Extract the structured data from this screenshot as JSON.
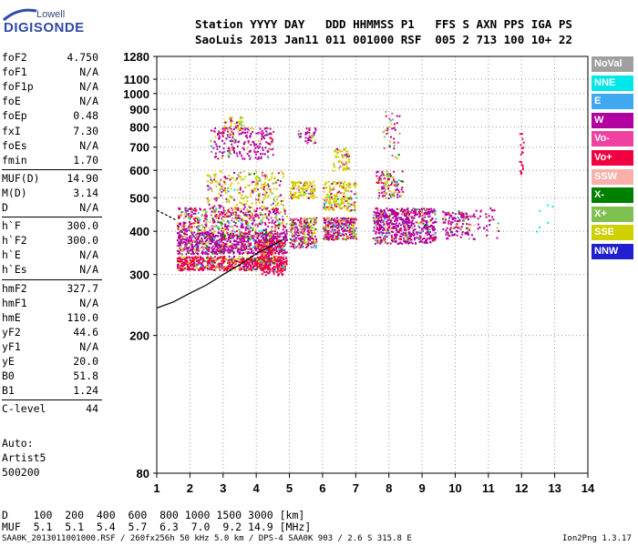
{
  "logo": {
    "line1": "Lowell",
    "line2": "DIGISONDE"
  },
  "header": {
    "line1": "Station YYYY DAY   DDD HHMMSS P1   FFS S AXN PPS IGA PS",
    "line2": "SaoLuis 2013 Jan11 011 001000 RSF  005 2 713 100 10+ 22"
  },
  "params": [
    {
      "name": "foF2",
      "value": "4.750"
    },
    {
      "name": "foF1",
      "value": "N/A"
    },
    {
      "name": "foF1p",
      "value": "N/A"
    },
    {
      "name": "foE",
      "value": "N/A"
    },
    {
      "name": "foEp",
      "value": "0.48"
    },
    {
      "name": "fxI",
      "value": "7.30"
    },
    {
      "name": "foEs",
      "value": "N/A"
    },
    {
      "name": "fmin",
      "value": "1.70"
    },
    {
      "name": "MUF(D)",
      "value": "14.90"
    },
    {
      "name": "M(D)",
      "value": "3.14"
    },
    {
      "name": "D",
      "value": "N/A"
    },
    {
      "name": "h`F",
      "value": "300.0"
    },
    {
      "name": "h`F2",
      "value": "300.0"
    },
    {
      "name": "h`E",
      "value": "N/A"
    },
    {
      "name": "h`Es",
      "value": "N/A"
    },
    {
      "name": "hmF2",
      "value": "327.7"
    },
    {
      "name": "hmF1",
      "value": "N/A"
    },
    {
      "name": "hmE",
      "value": "110.0"
    },
    {
      "name": "yF2",
      "value": "44.6"
    },
    {
      "name": "yF1",
      "value": "N/A"
    },
    {
      "name": "yE",
      "value": "20.0"
    },
    {
      "name": "B0",
      "value": "51.8"
    },
    {
      "name": "B1",
      "value": "1.24"
    },
    {
      "name": "C-level",
      "value": "44"
    }
  ],
  "auto": {
    "line1": "Auto:",
    "line2": "Artist5",
    "line3": "500200"
  },
  "legend": [
    {
      "label": "NoVal",
      "color": "#a0a0a0"
    },
    {
      "label": "NNE",
      "color": "#00e8e8"
    },
    {
      "label": "E",
      "color": "#40a8f0"
    },
    {
      "label": "W",
      "color": "#b000a0"
    },
    {
      "label": "Vo-",
      "color": "#f040a0"
    },
    {
      "label": "Vo+",
      "color": "#f00040"
    },
    {
      "label": "SSW",
      "color": "#f8b0a8"
    },
    {
      "label": "X-",
      "color": "#008000"
    },
    {
      "label": "X+",
      "color": "#80c050"
    },
    {
      "label": "SSE",
      "color": "#d0d000"
    },
    {
      "label": "NNW",
      "color": "#2020d0"
    }
  ],
  "muf_table": {
    "line1": "D    100  200  400  600  800 1000 1500 3000 [km]",
    "line2": "MUF  5.1  5.1  5.4  5.7  6.3  7.0  9.2 14.9 [MHz]"
  },
  "footer": {
    "left": "SAA0K_2013011001000.RSF / 260fx256h 50 kHz 5.0 km / DPS-4 SAA0K 903 / 2.6 S 315.8 E",
    "right": "Ion2Png 1.3.17"
  },
  "chart_data": {
    "type": "scatter",
    "title": "",
    "xlabel": "",
    "ylabel": "",
    "xlim": [
      1,
      14
    ],
    "ylim": [
      80,
      1280
    ],
    "x_ticks": [
      1,
      2,
      3,
      4,
      5,
      6,
      7,
      8,
      9,
      10,
      11,
      12,
      13,
      14
    ],
    "y_ticks": [
      80,
      200,
      300,
      400,
      500,
      600,
      700,
      800,
      900,
      1000,
      1100,
      1280
    ],
    "y_scale": "log",
    "grid": "dotted",
    "series": [
      {
        "kind": "trace",
        "x": [
          1.0,
          1.5,
          2.0,
          2.5,
          3.0,
          3.5,
          4.0,
          4.5,
          4.85
        ],
        "y": [
          240,
          250,
          265,
          280,
          300,
          320,
          345,
          365,
          380
        ]
      },
      {
        "kind": "trace",
        "x": [
          1.0,
          1.3,
          1.6
        ],
        "y": [
          460,
          445,
          430
        ]
      }
    ]
  }
}
